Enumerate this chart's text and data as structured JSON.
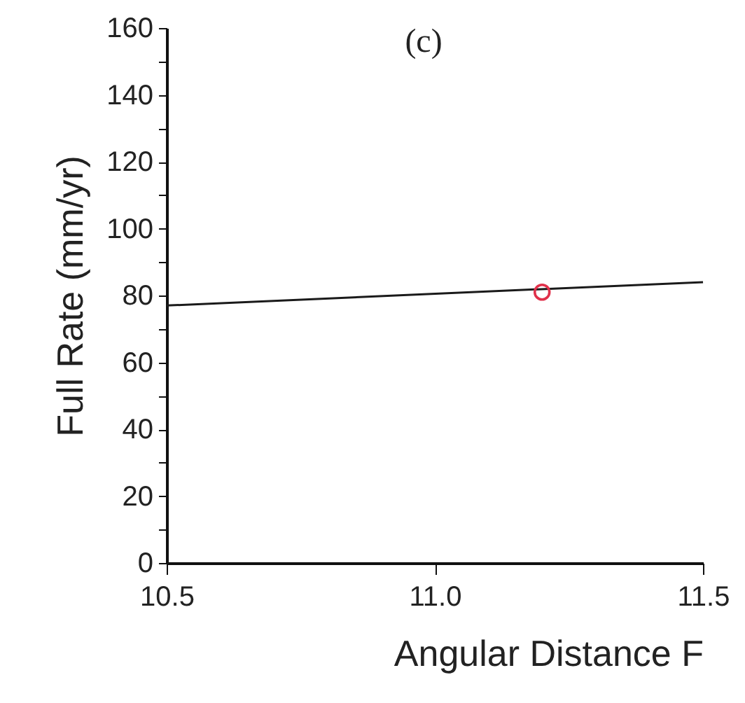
{
  "chart_data": {
    "type": "line",
    "title": "(c)",
    "xlabel": "Angular Distance F",
    "ylabel": "Full Rate (mm/yr)",
    "xlim": [
      10.5,
      11.5
    ],
    "xticks": [
      10.5,
      {
        "value": 11,
        "label": "11.0"
      },
      11.5
    ],
    "ylim": [
      0,
      160
    ],
    "yticks": [
      0,
      {
        "value": 10,
        "label": null
      },
      20,
      {
        "value": 30,
        "label": null
      },
      40,
      {
        "value": 50,
        "label": null
      },
      60,
      {
        "value": 70,
        "label": null
      },
      80,
      {
        "value": 90,
        "label": null
      },
      100,
      {
        "value": 110,
        "label": null
      },
      120,
      {
        "value": 130,
        "label": null
      },
      140,
      {
        "value": 150,
        "label": null
      },
      160
    ],
    "grid": false,
    "legend": false,
    "series": [
      {
        "color": "#1a1a1a",
        "x": [
          10.5,
          11.5
        ],
        "values": [
          77,
          84
        ],
        "marker": "none"
      },
      {
        "type": "scatter",
        "color": "#e0304a",
        "x": [
          11.2
        ],
        "values": [
          81
        ],
        "marker": "circle"
      }
    ]
  }
}
